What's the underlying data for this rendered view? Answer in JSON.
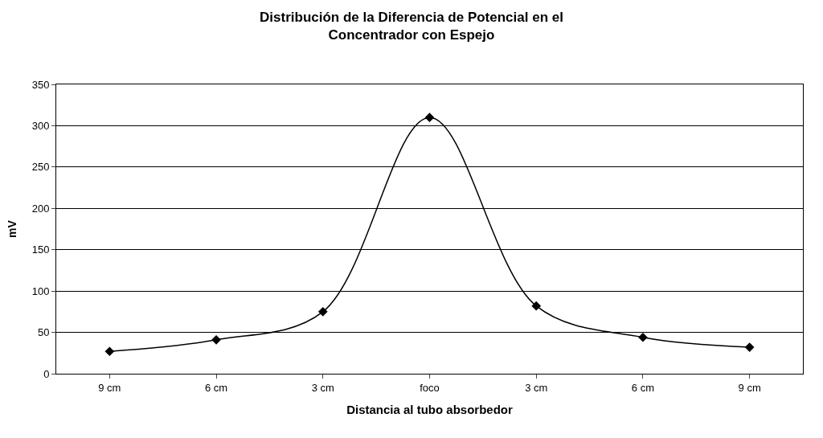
{
  "chart_data": {
    "type": "line",
    "title": "Distribución de la Diferencia de Potencial en el Concentrador con Espejo",
    "xlabel": "Distancia al tubo absorbedor",
    "ylabel": "mV",
    "categories": [
      "9 cm",
      "6 cm",
      "3 cm",
      "foco",
      "3 cm",
      "6 cm",
      "9 cm"
    ],
    "series": [
      {
        "color": "#000000",
        "values": [
          27,
          41,
          75,
          310,
          82,
          44,
          32
        ]
      }
    ],
    "ylim": [
      0,
      350
    ],
    "yticks": [
      0,
      50,
      100,
      150,
      200,
      250,
      300,
      350
    ],
    "grid": "y",
    "marker": "diamond",
    "line_style": "solid"
  }
}
